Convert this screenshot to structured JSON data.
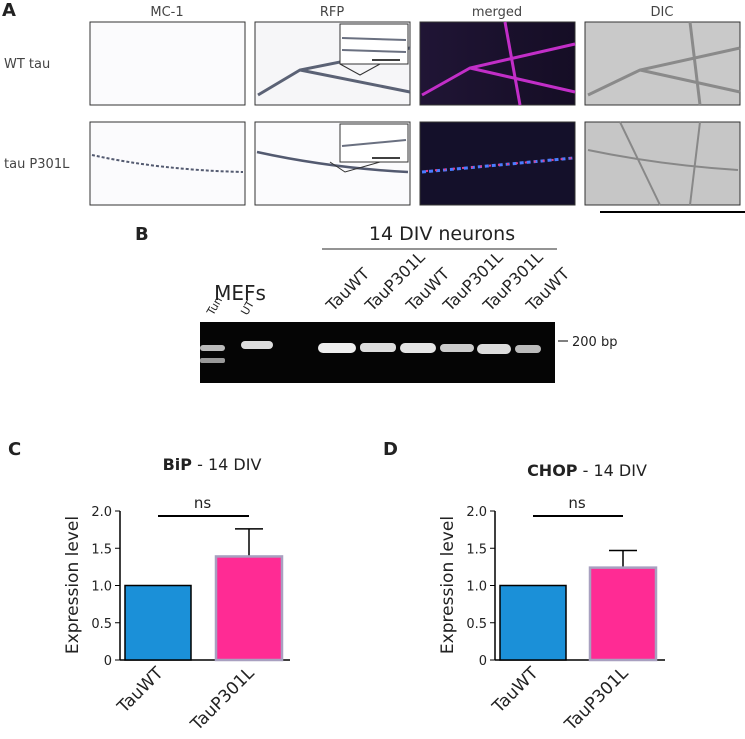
{
  "panel_a": {
    "label": "A",
    "columns": [
      "MC-1",
      "RFP",
      "merged",
      "DIC"
    ],
    "rows": [
      "WT tau",
      "tau P301L"
    ]
  },
  "panel_b": {
    "label": "B",
    "header": "14 DIV neurons",
    "group": "MEFs",
    "lanes": [
      "Tun",
      "UT",
      "TauWT",
      "TauP301L",
      "TauWT",
      "TauP301L",
      "TauP301L",
      "TauWT"
    ],
    "marker": "200 bp"
  },
  "chart_data": [
    {
      "type": "bar",
      "panel_label": "C",
      "title": {
        "bold": "BiP",
        "text": "- 14 DIV"
      },
      "categories": [
        "TauWT",
        "TauP301L"
      ],
      "values": [
        1.0,
        1.39
      ],
      "errors": [
        null,
        0.37
      ],
      "colors": [
        "#1b90d8",
        "#ff2b94"
      ],
      "ylabel": "Expression level",
      "ylim": [
        0,
        2
      ],
      "yticks": [
        0,
        0.5,
        {
          "value": 1,
          "label": "1.0"
        },
        1.5,
        {
          "value": 2,
          "label": "2.0"
        }
      ],
      "annotation": "ns"
    },
    {
      "type": "bar",
      "panel_label": "D",
      "title": {
        "bold": "CHOP",
        "text": "- 14 DIV"
      },
      "categories": [
        "TauWT",
        "TauP301L"
      ],
      "values": [
        1.0,
        1.24
      ],
      "errors": [
        null,
        0.23
      ],
      "colors": [
        "#1b90d8",
        "#ff2b94"
      ],
      "ylabel": "Expression level",
      "ylim": [
        0,
        2
      ],
      "yticks": [
        0,
        0.5,
        {
          "value": 1,
          "label": "1.0"
        },
        1.5,
        {
          "value": 2,
          "label": "2.0"
        }
      ],
      "annotation": "ns"
    }
  ]
}
